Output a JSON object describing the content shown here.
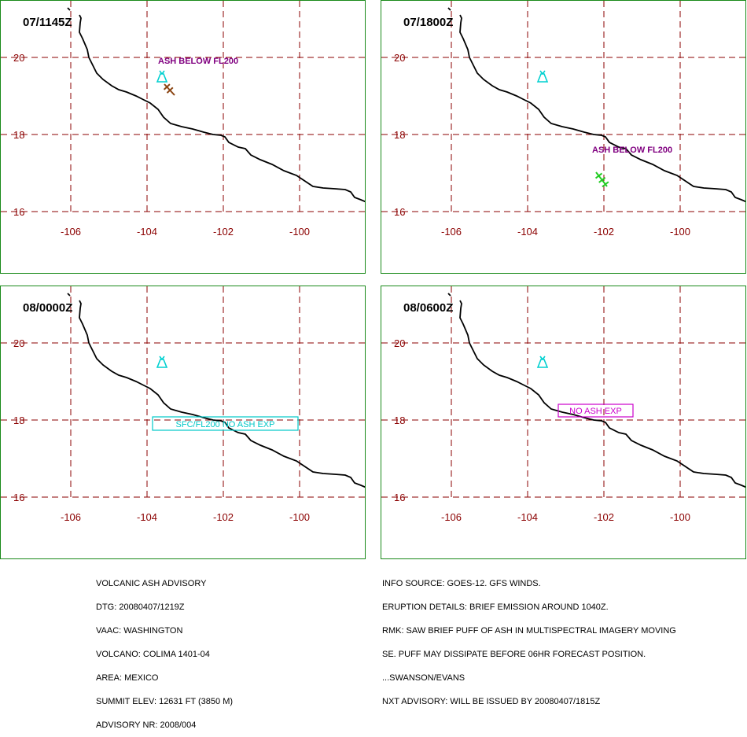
{
  "colors": {
    "frame": "#1a8a1a",
    "grid": "#8b0000",
    "coastline": "#000000",
    "volcano_symbol": "#00d0d0",
    "ash_label": "#800080",
    "wind_barb_1145": "#8b4513",
    "wind_barb_1800": "#22cc22",
    "fcst_box_cyan": "#00c8c8",
    "fcst_box_magenta": "#cc00cc"
  },
  "map": {
    "lat_ticks": [
      "20",
      "18",
      "16"
    ],
    "lon_ticks": [
      "-106",
      "-104",
      "-102",
      "-100"
    ],
    "volcano_icon": "volcano-icon"
  },
  "panels": [
    {
      "time": "07/1145Z",
      "annotation": "ASH BELOW FL200",
      "wind_barb": true
    },
    {
      "time": "07/1800Z",
      "annotation": "ASH BELOW FL200",
      "wind_barb": true
    },
    {
      "time": "08/0000Z",
      "annotation": "SFC/FL200 NO ASH EXP",
      "wind_barb": false
    },
    {
      "time": "08/0600Z",
      "annotation": "NO ASH EXP",
      "wind_barb": false
    }
  ],
  "advisory_left": [
    "VOLCANIC ASH ADVISORY",
    "DTG: 20080407/1219Z",
    "VAAC: WASHINGTON",
    "VOLCANO: COLIMA 1401-04",
    "AREA: MEXICO",
    "SUMMIT ELEV: 12631 FT (3850 M)",
    "ADVISORY NR: 2008/004"
  ],
  "advisory_right": [
    "INFO SOURCE: GOES-12. GFS WINDS.",
    "ERUPTION DETAILS: BRIEF EMISSION AROUND 1040Z.",
    "RMK: SAW BRIEF PUFF OF ASH IN MULTISPECTRAL IMAGERY MOVING",
    "SE. PUFF MAY DISSIPATE BEFORE 06HR FORECAST POSITION.",
    "...SWANSON/EVANS",
    "NXT ADVISORY: WILL BE ISSUED BY 20080407/1815Z"
  ]
}
